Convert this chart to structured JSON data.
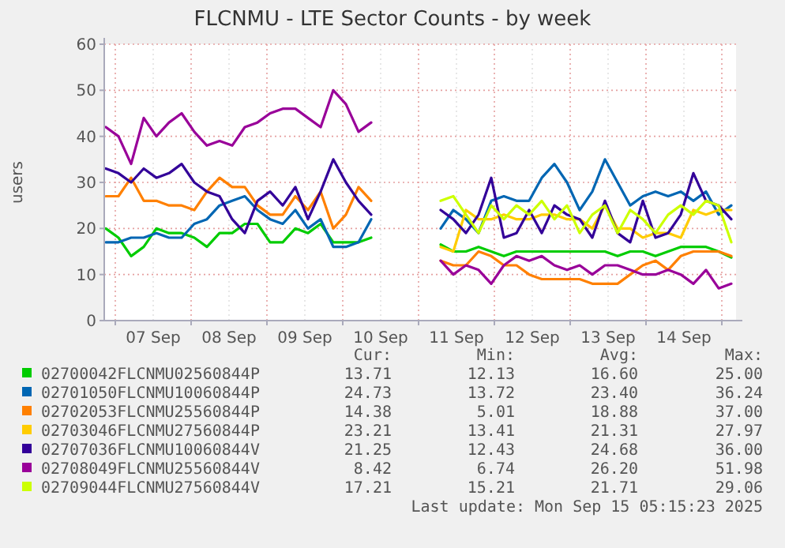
{
  "chart_data": {
    "type": "line",
    "title": "FLCNMU - LTE Sector Counts - by week",
    "ylabel": "users",
    "x": [
      "2025-09-06T21:00",
      "2025-09-07T01:00",
      "2025-09-07T05:00",
      "2025-09-07T09:00",
      "2025-09-07T13:00",
      "2025-09-07T17:00",
      "2025-09-07T21:00",
      "2025-09-08T01:00",
      "2025-09-08T05:00",
      "2025-09-08T09:00",
      "2025-09-08T13:00",
      "2025-09-08T17:00",
      "2025-09-08T21:00",
      "2025-09-09T01:00",
      "2025-09-09T05:00",
      "2025-09-09T09:00",
      "2025-09-09T13:00",
      "2025-09-09T17:00",
      "2025-09-09T21:00",
      "2025-09-10T01:00",
      "2025-09-10T05:00",
      "2025-09-10T09:00",
      "2025-09-10T20:00",
      "2025-09-11T07:00",
      "2025-09-11T11:00",
      "2025-09-11T15:00",
      "2025-09-11T19:00",
      "2025-09-11T23:00",
      "2025-09-12T03:00",
      "2025-09-12T07:00",
      "2025-09-12T11:00",
      "2025-09-12T15:00",
      "2025-09-12T19:00",
      "2025-09-12T23:00",
      "2025-09-13T03:00",
      "2025-09-13T07:00",
      "2025-09-13T11:00",
      "2025-09-13T15:00",
      "2025-09-13T19:00",
      "2025-09-13T23:00",
      "2025-09-14T03:00",
      "2025-09-14T07:00",
      "2025-09-14T11:00",
      "2025-09-14T15:00",
      "2025-09-14T19:00",
      "2025-09-14T23:00",
      "2025-09-15T03:00"
    ],
    "series": [
      {
        "name": "02700042FLCNMU02560844P",
        "color": "#00cc00",
        "values": [
          20,
          18,
          14,
          16,
          20,
          19,
          19,
          18,
          16,
          19,
          19,
          21,
          21,
          17,
          17,
          20,
          19,
          21,
          17,
          17,
          17,
          18,
          null,
          16.5,
          15,
          15,
          16,
          15,
          14,
          15,
          15,
          15,
          15,
          15,
          15,
          15,
          15,
          14,
          15,
          15,
          14,
          15,
          16,
          16,
          16,
          15,
          13.7
        ]
      },
      {
        "name": "02701050FLCNMU10060844P",
        "color": "#0066b3",
        "values": [
          17,
          17,
          18,
          18,
          19,
          18,
          18,
          21,
          22,
          25,
          26,
          27,
          24,
          22,
          21,
          24,
          20,
          22,
          16,
          16,
          17,
          22,
          null,
          20,
          24,
          22,
          19,
          26,
          27,
          26,
          26,
          31,
          34,
          30,
          24,
          28,
          35,
          30,
          25,
          27,
          28,
          27,
          28,
          26,
          28,
          23,
          25
        ]
      },
      {
        "name": "02702053FLCNMU25560844P",
        "color": "#ff8000",
        "values": [
          27,
          27,
          31,
          26,
          26,
          25,
          25,
          24,
          28,
          31,
          29,
          29,
          25,
          23,
          23,
          27,
          24,
          28,
          20,
          23,
          29,
          26,
          null,
          13,
          12,
          12,
          15,
          14,
          12,
          12,
          10,
          9,
          9,
          9,
          9,
          8,
          8,
          8,
          10,
          12,
          13,
          11,
          14,
          15,
          15,
          15,
          14
        ]
      },
      {
        "name": "02703046FLCNMU27560844P",
        "color": "#ffcc00",
        "values": [
          null,
          null,
          null,
          null,
          null,
          null,
          null,
          null,
          null,
          null,
          null,
          null,
          null,
          null,
          null,
          null,
          null,
          null,
          null,
          null,
          null,
          null,
          null,
          16,
          15,
          24,
          22,
          22,
          23,
          22,
          22,
          23,
          23,
          22,
          22,
          20,
          25,
          20,
          20,
          18,
          19,
          19,
          18,
          24,
          23,
          24,
          24
        ]
      },
      {
        "name": "02707036FLCNMU10060844V",
        "color": "#330099",
        "values": [
          33,
          32,
          30,
          33,
          31,
          32,
          34,
          30,
          28,
          27,
          22,
          19,
          26,
          28,
          25,
          29,
          22,
          28,
          35,
          30,
          26,
          23,
          null,
          24,
          22,
          19,
          23,
          31,
          18,
          19,
          24,
          19,
          25,
          23,
          22,
          18,
          26,
          19,
          17,
          26,
          18,
          19,
          23,
          32,
          26,
          25,
          22
        ]
      },
      {
        "name": "02708049FLCNMU25560844V",
        "color": "#990099",
        "values": [
          42,
          40,
          34,
          44,
          40,
          43,
          45,
          41,
          38,
          39,
          38,
          42,
          43,
          45,
          46,
          46,
          44,
          42,
          50,
          47,
          41,
          43,
          null,
          13,
          10,
          12,
          11,
          8,
          12,
          14,
          13,
          14,
          12,
          11,
          12,
          10,
          12,
          12,
          11,
          10,
          10,
          11,
          10,
          8,
          11,
          7,
          8
        ]
      },
      {
        "name": "02709044FLCNMU27560844V",
        "color": "#ccff00",
        "values": [
          null,
          null,
          null,
          null,
          null,
          null,
          null,
          null,
          null,
          null,
          null,
          null,
          null,
          null,
          null,
          null,
          null,
          null,
          null,
          null,
          null,
          null,
          null,
          26,
          27,
          23,
          19,
          25,
          22,
          25,
          23,
          26,
          22,
          25,
          19,
          23,
          25,
          19,
          24,
          22,
          19,
          23,
          25,
          23,
          26,
          25,
          17
        ]
      }
    ],
    "xlim": [
      "2025-09-06T20:30",
      "2025-09-15T04:30"
    ],
    "xticks": [
      {
        "value": "2025-09-07T00:00",
        "label": null
      },
      {
        "value": "2025-09-07T12:00",
        "label": "07 Sep"
      },
      {
        "value": "2025-09-08T00:00",
        "label": null
      },
      {
        "value": "2025-09-08T12:00",
        "label": "08 Sep"
      },
      {
        "value": "2025-09-09T00:00",
        "label": null
      },
      {
        "value": "2025-09-09T12:00",
        "label": "09 Sep"
      },
      {
        "value": "2025-09-10T00:00",
        "label": null
      },
      {
        "value": "2025-09-10T12:00",
        "label": "10 Sep"
      },
      {
        "value": "2025-09-11T00:00",
        "label": null
      },
      {
        "value": "2025-09-11T12:00",
        "label": "11 Sep"
      },
      {
        "value": "2025-09-12T00:00",
        "label": null
      },
      {
        "value": "2025-09-12T12:00",
        "label": "12 Sep"
      },
      {
        "value": "2025-09-13T00:00",
        "label": null
      },
      {
        "value": "2025-09-13T12:00",
        "label": "13 Sep"
      },
      {
        "value": "2025-09-14T00:00",
        "label": null
      },
      {
        "value": "2025-09-14T12:00",
        "label": "14 Sep"
      },
      {
        "value": "2025-09-15T00:00",
        "label": null
      }
    ],
    "ylim": [
      0,
      60
    ],
    "yticks": [
      0,
      10,
      20,
      30,
      40,
      50,
      60
    ],
    "grid": true,
    "legend": "bottom",
    "marker": "none",
    "line_style": "solid",
    "annotations": [
      "Cur:",
      "Min:",
      "Avg:",
      "Max:",
      "13.71",
      "12.13",
      "16.60",
      "25.00",
      "24.73",
      "13.72",
      "23.40",
      "36.24",
      "14.38",
      "5.01",
      "18.88",
      "37.00",
      "23.21",
      "13.41",
      "21.31",
      "27.97",
      "21.25",
      "12.43",
      "24.68",
      "36.00",
      "8.42",
      "6.74",
      "26.20",
      "51.98",
      "17.21",
      "15.21",
      "21.71",
      "29.06",
      "Last update: Mon Sep 15 05:15:23 2025"
    ]
  }
}
